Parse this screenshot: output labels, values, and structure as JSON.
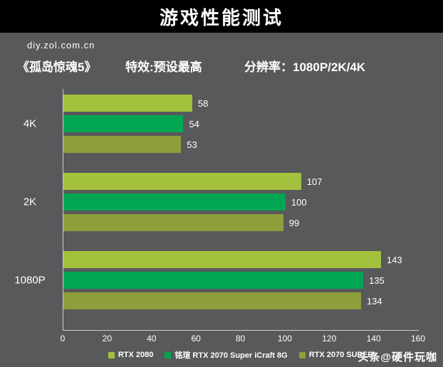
{
  "header": {
    "title": "游戏性能测试"
  },
  "meta": {
    "site": "diy.zol.com.cn"
  },
  "subtitle": {
    "game": "《孤岛惊魂5》",
    "effects": "特效:预设最高",
    "resolution": "分辨率：1080P/2K/4K"
  },
  "watermark": "头条@硬件玩咖",
  "chart_data": {
    "type": "bar",
    "orientation": "horizontal",
    "title": "游戏性能测试",
    "categories": [
      "4K",
      "2K",
      "1080P"
    ],
    "series": [
      {
        "name": "RTX 2080",
        "color": "#a3c13d",
        "values": [
          58,
          107,
          143
        ]
      },
      {
        "name": "铭瑄 RTX 2070 Super iCraft 8G",
        "color": "#00a651",
        "values": [
          54,
          100,
          135
        ]
      },
      {
        "name": "RTX 2070 SUPER",
        "color": "#8c9f3b",
        "values": [
          53,
          99,
          134
        ]
      }
    ],
    "xlim": [
      0,
      160
    ],
    "xticks": [
      0,
      20,
      40,
      60,
      80,
      100,
      120,
      140,
      160
    ],
    "grid": false,
    "legend_position": "bottom"
  }
}
